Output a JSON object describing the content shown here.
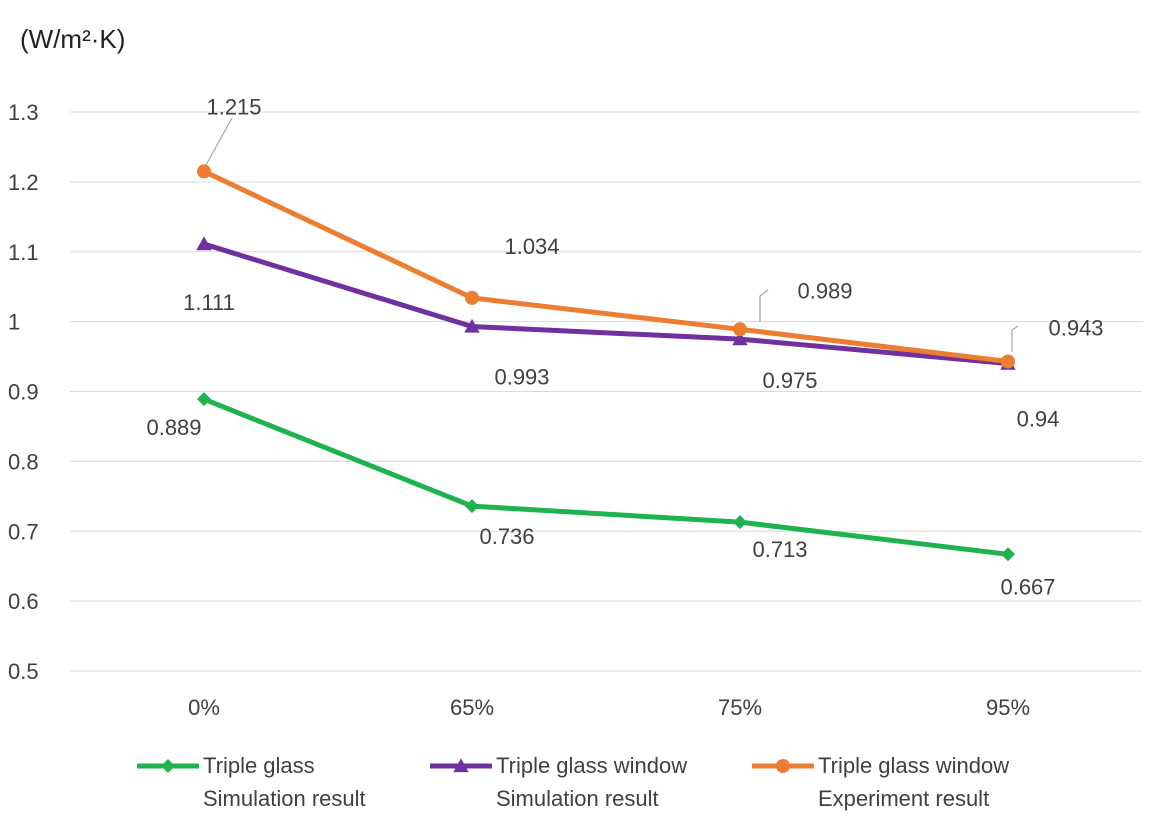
{
  "chart_data": {
    "type": "line",
    "title": "",
    "ylabel": "(W/m²·K)",
    "xlabel": "",
    "categories": [
      "0%",
      "65%",
      "75%",
      "95%"
    ],
    "ylim": [
      0.5,
      1.3
    ],
    "yticks": [
      "0.5",
      "0.6",
      "0.7",
      "0.8",
      "0.9",
      "1",
      "1.1",
      "1.2",
      "1.3"
    ],
    "grid": true,
    "legend_position": "bottom",
    "series": [
      {
        "name": "Triple glass Simulation result",
        "legend_lines": [
          "Triple glass",
          "Simulation result"
        ],
        "values": [
          0.889,
          0.736,
          0.713,
          0.667
        ],
        "labels": [
          "0.889",
          "0.736",
          "0.713",
          "0.667"
        ],
        "color": "#1fb34f",
        "marker": "diamond"
      },
      {
        "name": "Triple glass window Simulation result",
        "legend_lines": [
          "Triple glass window",
          "Simulation result"
        ],
        "values": [
          1.111,
          0.993,
          0.975,
          0.94
        ],
        "labels": [
          "1.111",
          "0.993",
          "0.975",
          "0.94"
        ],
        "color": "#7030a0",
        "marker": "triangle"
      },
      {
        "name": "Triple glass window Experiment result",
        "legend_lines": [
          "Triple glass window",
          "Experiment result"
        ],
        "values": [
          1.215,
          1.034,
          0.989,
          0.943
        ],
        "labels": [
          "1.215",
          "1.034",
          "0.989",
          "0.943"
        ],
        "color": "#ed7d31",
        "marker": "circle"
      }
    ]
  }
}
